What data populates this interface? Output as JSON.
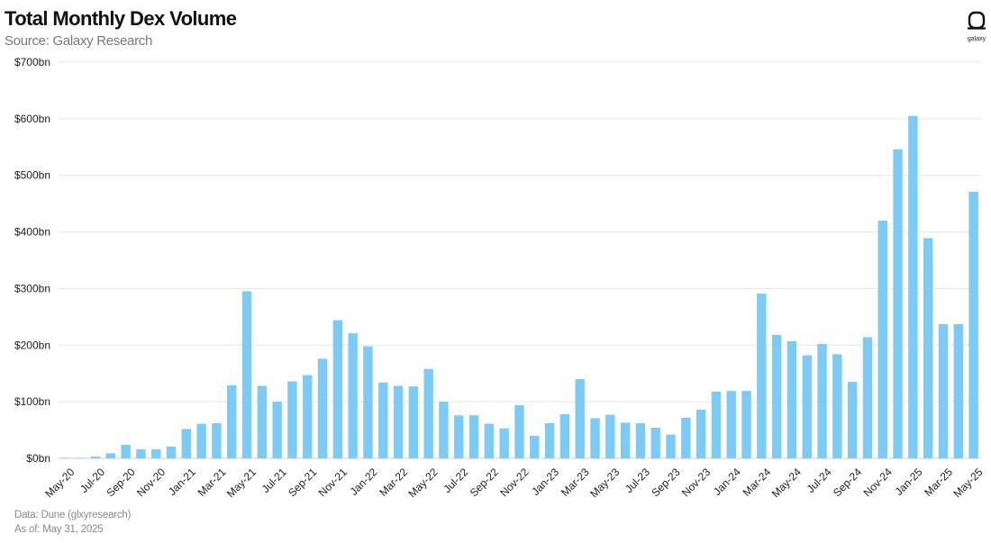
{
  "header": {
    "title": "Total Monthly Dex Volume",
    "subtitle": "Source: Galaxy Research",
    "logo_text": "galaxy"
  },
  "footer": {
    "data_source": "Data: Dune (glxyresearch)",
    "as_of": "As of: May 31, 2025"
  },
  "colors": {
    "bar": "#7ccbf7",
    "grid": "#e6e6e6",
    "text": "#222222"
  },
  "chart_data": {
    "type": "bar",
    "title": "Total Monthly Dex Volume",
    "xlabel": "",
    "ylabel": "",
    "unit": "$bn",
    "ylim": [
      0,
      700
    ],
    "yticks": [
      0,
      100,
      200,
      300,
      400,
      500,
      600,
      700
    ],
    "ytick_labels": [
      "$0bn",
      "$100bn",
      "$200bn",
      "$300bn",
      "$400bn",
      "$500bn",
      "$600bn",
      "$700bn"
    ],
    "grid": true,
    "legend": "none",
    "categories": [
      "May-20",
      "Jun-20",
      "Jul-20",
      "Aug-20",
      "Sep-20",
      "Oct-20",
      "Nov-20",
      "Dec-20",
      "Jan-21",
      "Feb-21",
      "Mar-21",
      "Apr-21",
      "May-21",
      "Jun-21",
      "Jul-21",
      "Aug-21",
      "Sep-21",
      "Oct-21",
      "Nov-21",
      "Dec-21",
      "Jan-22",
      "Feb-22",
      "Mar-22",
      "Apr-22",
      "May-22",
      "Jun-22",
      "Jul-22",
      "Aug-22",
      "Sep-22",
      "Oct-22",
      "Nov-22",
      "Dec-22",
      "Jan-23",
      "Feb-23",
      "Mar-23",
      "Apr-23",
      "May-23",
      "Jun-23",
      "Jul-23",
      "Aug-23",
      "Sep-23",
      "Oct-23",
      "Nov-23",
      "Dec-23",
      "Jan-24",
      "Feb-24",
      "Mar-24",
      "Apr-24",
      "May-24",
      "Jun-24",
      "Jul-24",
      "Aug-24",
      "Sep-24",
      "Oct-24",
      "Nov-24",
      "Dec-24",
      "Jan-25",
      "Feb-25",
      "Mar-25",
      "Apr-25",
      "May-25"
    ],
    "x_tick_labels": [
      "May-20",
      "Jul-20",
      "Sep-20",
      "Nov-20",
      "Jan-21",
      "Mar-21",
      "May-21",
      "Jul-21",
      "Sep-21",
      "Nov-21",
      "Jan-22",
      "Mar-22",
      "May-22",
      "Jul-22",
      "Sep-22",
      "Nov-22",
      "Jan-23",
      "Mar-23",
      "May-23",
      "Jul-23",
      "Sep-23",
      "Nov-23",
      "Jan-24",
      "Mar-24",
      "May-24",
      "Jul-24",
      "Sep-24",
      "Nov-24",
      "Jan-25",
      "Mar-25",
      "May-25"
    ],
    "values": [
      1,
      1,
      3,
      9,
      24,
      16,
      16,
      21,
      52,
      61,
      62,
      129,
      295,
      128,
      100,
      136,
      147,
      176,
      244,
      221,
      198,
      134,
      128,
      127,
      158,
      100,
      76,
      76,
      61,
      53,
      94,
      40,
      62,
      78,
      140,
      71,
      77,
      63,
      62,
      54,
      42,
      72,
      86,
      118,
      119,
      119,
      291,
      218,
      207,
      182,
      202,
      184,
      135,
      214,
      420,
      546,
      605,
      389,
      237,
      237,
      471
    ]
  }
}
